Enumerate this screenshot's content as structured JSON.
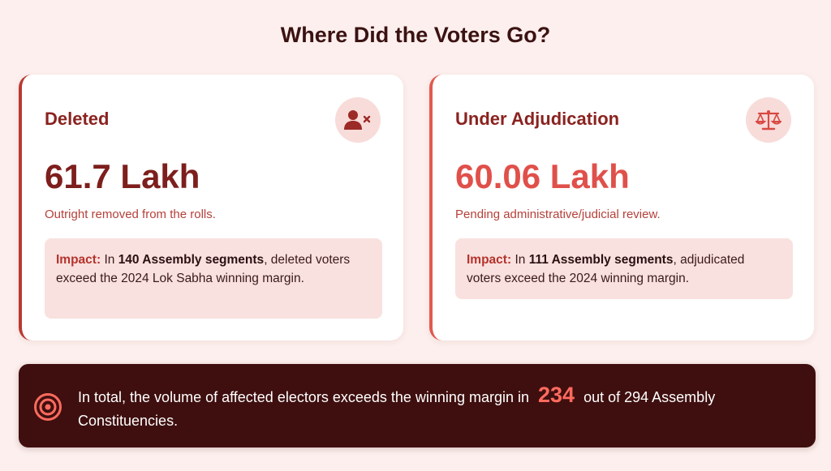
{
  "title": "Where Did the Voters Go?",
  "cards": [
    {
      "heading": "Deleted",
      "icon": "user-remove-icon",
      "value": "61.7 Lakh",
      "description": "Outright removed from the rolls.",
      "impact": {
        "label": "Impact:",
        "pre": "In",
        "highlight": "140 Assembly segments",
        "post": ", deleted voters exceed the 2024 Lok Sabha winning margin."
      }
    },
    {
      "heading": "Under Adjudication",
      "icon": "scales-icon",
      "value": "60.06 Lakh",
      "description": "Pending administrative/judicial review.",
      "impact": {
        "label": "Impact:",
        "pre": "In",
        "highlight": "111 Assembly segments",
        "post": ", adjudicated voters exceed the 2024 winning margin."
      }
    }
  ],
  "banner": {
    "icon": "target-icon",
    "pre": "In total, the volume of affected electors exceeds the winning margin in",
    "highlight": "234",
    "post": "out of 294 Assembly Constituencies."
  },
  "colors": {
    "background": "#fcefed",
    "accent_dark": "#8a2320",
    "accent_bright": "#e0504a",
    "banner_bg": "#3f0f0f",
    "banner_highlight": "#ff6b5e"
  }
}
